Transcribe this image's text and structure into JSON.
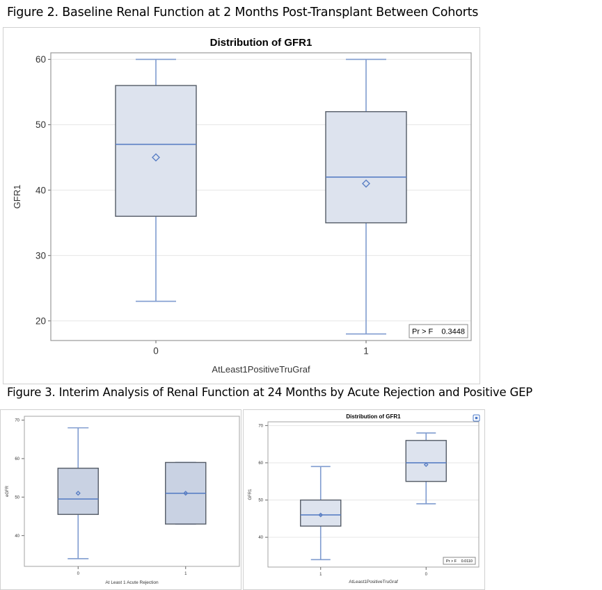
{
  "figure2_caption": "Figure 2. Baseline Renal Function at 2 Months Post-Transplant Between Cohorts",
  "figure3_caption": "Figure 3. Interim Analysis of Renal Function at 24 Months by Acute Rejection and Positive GEP",
  "colors": {
    "box_fill_light": "#dde3ee",
    "box_fill_dark": "#c9d2e3",
    "box_edge": "#545b66",
    "whisker": "#7f9bcf",
    "median": "#5a7fc4",
    "mean_marker": "#5a7fc4",
    "grid": "#e6e6e6",
    "frame": "#9a9a9a"
  },
  "chart_data": [
    {
      "type": "box",
      "title": "Distribution of GFR1",
      "xlabel": "AtLeast1PositiveTruGraf",
      "ylabel": "GFR1",
      "ylim": [
        17,
        61
      ],
      "yticks": [
        20,
        30,
        40,
        50,
        60
      ],
      "grid": true,
      "annotation": {
        "label": "Pr > F",
        "value": "0.3448",
        "placement": "bottom-right"
      },
      "categories": [
        "0",
        "1"
      ],
      "boxes": [
        {
          "category": "0",
          "min": 23,
          "q1": 36,
          "median": 47,
          "q3": 56,
          "max": 60,
          "mean": 45
        },
        {
          "category": "1",
          "min": 18,
          "q1": 35,
          "median": 42,
          "q3": 52,
          "max": 60,
          "mean": 41
        }
      ]
    },
    {
      "type": "box",
      "title": "",
      "xlabel": "At Least 1 Acute Rejection",
      "ylabel": "eGFR",
      "ylim": [
        32,
        71
      ],
      "yticks": [
        40,
        50,
        60,
        70
      ],
      "grid": false,
      "categories": [
        "0",
        "1"
      ],
      "boxes": [
        {
          "category": "0",
          "min": 34,
          "q1": 45.5,
          "median": 49.5,
          "q3": 57.5,
          "max": 68,
          "mean": 51
        },
        {
          "category": "1",
          "min": 43,
          "q1": 43,
          "median": 51,
          "q3": 59,
          "max": 59,
          "mean": 51
        }
      ]
    },
    {
      "type": "box",
      "title": "Distribution of GFR1",
      "xlabel": "AtLeast1PositiveTruGraf",
      "ylabel": "GFR1",
      "ylim": [
        32,
        71
      ],
      "yticks": [
        40,
        50,
        60,
        70
      ],
      "grid": true,
      "annotation": {
        "label": "Pr > F",
        "value": "0.0110",
        "placement": "bottom-right"
      },
      "categories": [
        "1",
        "0"
      ],
      "boxes": [
        {
          "category": "1",
          "min": 34,
          "q1": 43,
          "median": 46,
          "q3": 50,
          "max": 59,
          "mean": 46
        },
        {
          "category": "0",
          "min": 49,
          "q1": 55,
          "median": 60,
          "q3": 66,
          "max": 68,
          "mean": 59.5
        }
      ]
    }
  ]
}
